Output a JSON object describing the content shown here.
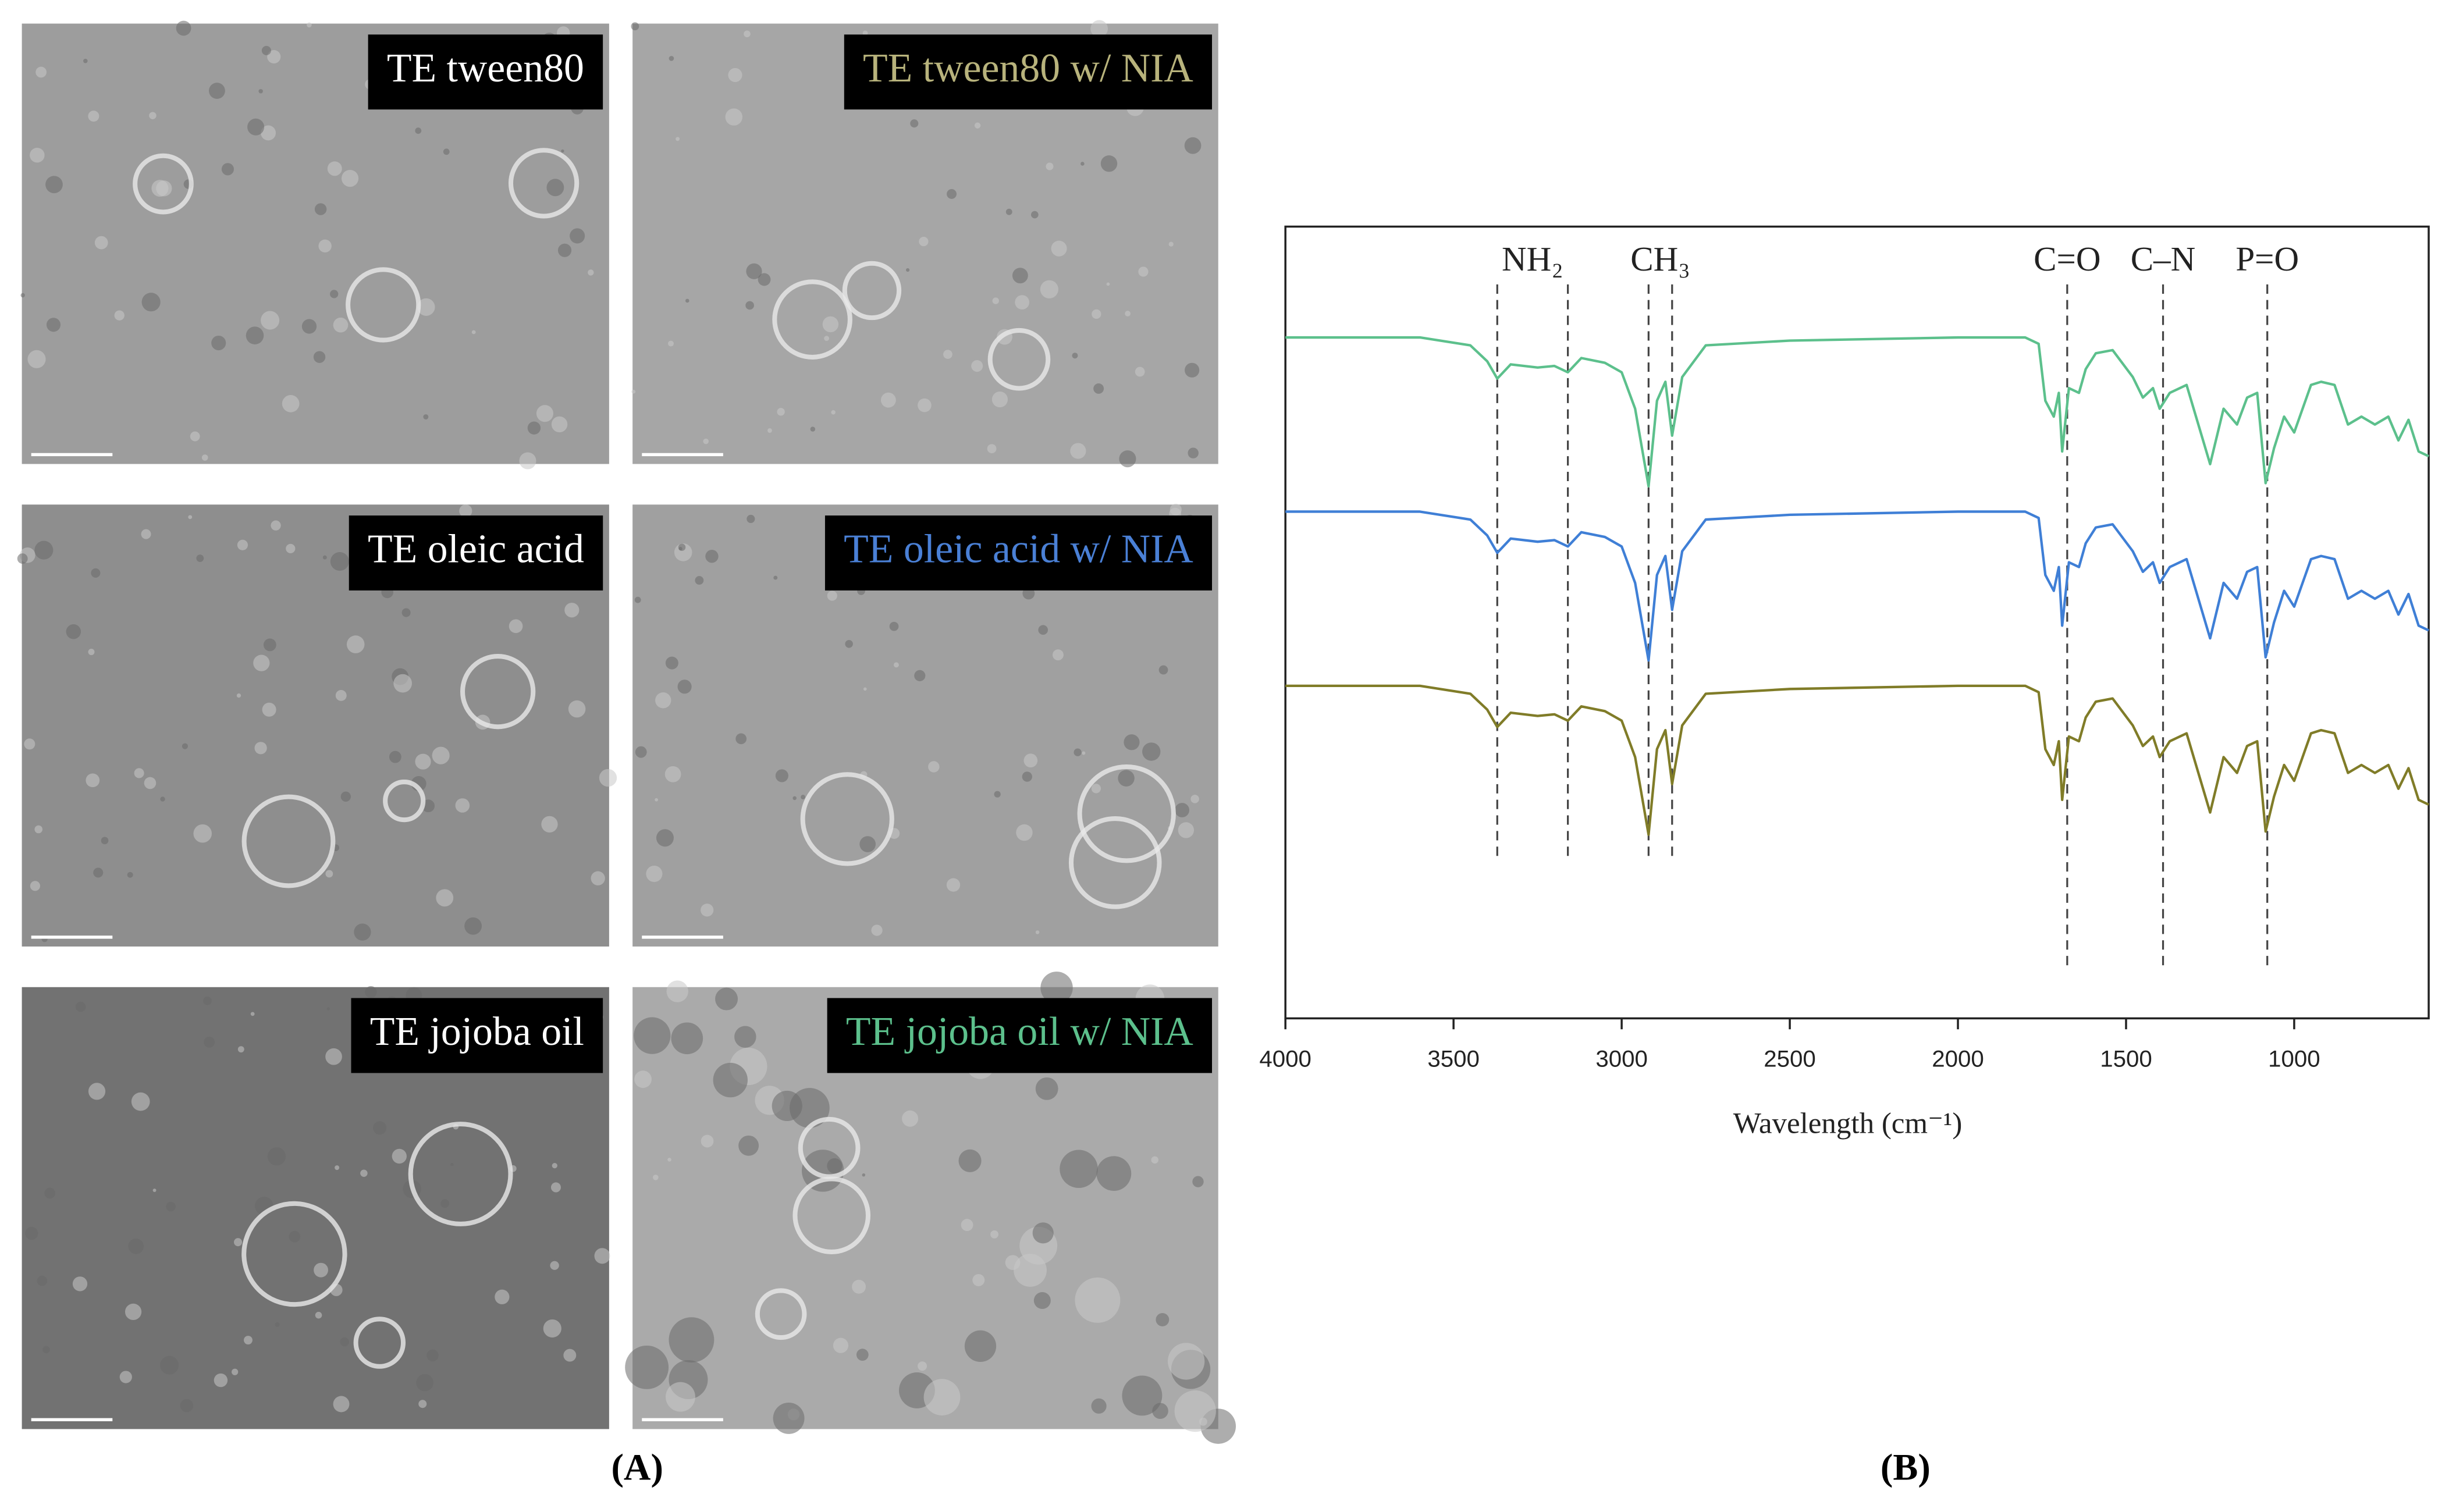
{
  "panel_a": {
    "images": [
      {
        "label": "TE tween80",
        "label_color": "#ffffff"
      },
      {
        "label": "TE tween80 w/ NIA",
        "label_color": "#b8b37c"
      },
      {
        "label": "TE oleic acid",
        "label_color": "#ffffff"
      },
      {
        "label": "TE oleic acid w/ NIA",
        "label_color": "#4a80d6"
      },
      {
        "label": "TE jojoba oil",
        "label_color": "#ffffff"
      },
      {
        "label": "TE jojoba oil w/ NIA",
        "label_color": "#5cc08c"
      }
    ],
    "caption": "(A)"
  },
  "panel_b_caption": "(B)",
  "chart_data": {
    "type": "line",
    "x_label": "Wavelength (cm⁻¹)",
    "xlim": [
      4000,
      600
    ],
    "xticks": [
      4000,
      3500,
      3000,
      2500,
      2000,
      1500,
      1000
    ],
    "ylim": [
      0,
      100
    ],
    "x": [
      4000,
      3600,
      3450,
      3400,
      3370,
      3330,
      3250,
      3200,
      3160,
      3120,
      3050,
      3000,
      2960,
      2920,
      2895,
      2870,
      2850,
      2820,
      2750,
      2500,
      2000,
      1800,
      1760,
      1740,
      1715,
      1700,
      1690,
      1670,
      1640,
      1620,
      1590,
      1540,
      1480,
      1450,
      1420,
      1400,
      1370,
      1320,
      1250,
      1210,
      1170,
      1140,
      1110,
      1085,
      1060,
      1030,
      1000,
      975,
      950,
      920,
      880,
      840,
      800,
      760,
      720,
      690,
      660,
      630,
      600
    ],
    "series": [
      {
        "color": "#5cc08c",
        "values": [
          86,
          86,
          85,
          83,
          80.8,
          82.6,
          82.2,
          82.4,
          81.6,
          83.4,
          82.8,
          81.6,
          77,
          67.2,
          78,
          80.4,
          73.6,
          81,
          85,
          85.6,
          86,
          86,
          85.2,
          78,
          76,
          79,
          71.6,
          79.6,
          79,
          82,
          84,
          84.4,
          81,
          78.4,
          79.6,
          77,
          79,
          80,
          70,
          77,
          75,
          78.4,
          79,
          67.6,
          72,
          76,
          74,
          77,
          80,
          80.4,
          80,
          75,
          76,
          75,
          76,
          73,
          75.6,
          71.6,
          71
        ]
      },
      {
        "color": "#3f7fd6",
        "values": [
          64,
          64,
          63,
          61,
          58.8,
          60.6,
          60.2,
          60.4,
          59.6,
          61.4,
          60.8,
          59.6,
          55,
          45.2,
          56,
          58.4,
          51.6,
          59,
          63,
          63.6,
          64,
          64,
          63.2,
          56,
          54,
          57,
          49.6,
          57.6,
          57,
          60,
          62,
          62.4,
          59,
          56.4,
          57.6,
          55,
          57,
          58,
          48,
          55,
          53,
          56.4,
          57,
          45.6,
          50,
          54,
          52,
          55,
          58,
          58.4,
          58,
          53,
          54,
          53,
          54,
          51,
          53.6,
          49.6,
          49
        ]
      },
      {
        "color": "#807c28",
        "values": [
          42,
          42,
          41,
          39,
          36.8,
          38.6,
          38.2,
          38.4,
          37.6,
          39.4,
          38.8,
          37.6,
          33,
          23.2,
          34,
          36.4,
          29.6,
          37,
          41,
          41.6,
          42,
          42,
          41.2,
          34,
          32,
          35,
          27.6,
          35.6,
          35,
          38,
          40,
          40.4,
          37,
          34.4,
          35.6,
          33,
          35,
          36,
          26,
          33,
          31,
          34.4,
          35,
          23.6,
          28,
          32,
          30,
          33,
          36,
          36.4,
          36,
          31,
          32,
          31,
          32,
          29,
          31.6,
          27.6,
          27
        ]
      }
    ],
    "annotations": [
      {
        "label": "NH₂",
        "x": [
          3370,
          3160
        ]
      },
      {
        "label": "CH₃",
        "x": [
          2920,
          2850
        ]
      },
      {
        "label": "C=O",
        "x": [
          1675
        ]
      },
      {
        "label": "C–N",
        "x": [
          1390
        ]
      },
      {
        "label": "P=O",
        "x": [
          1080
        ]
      }
    ]
  }
}
